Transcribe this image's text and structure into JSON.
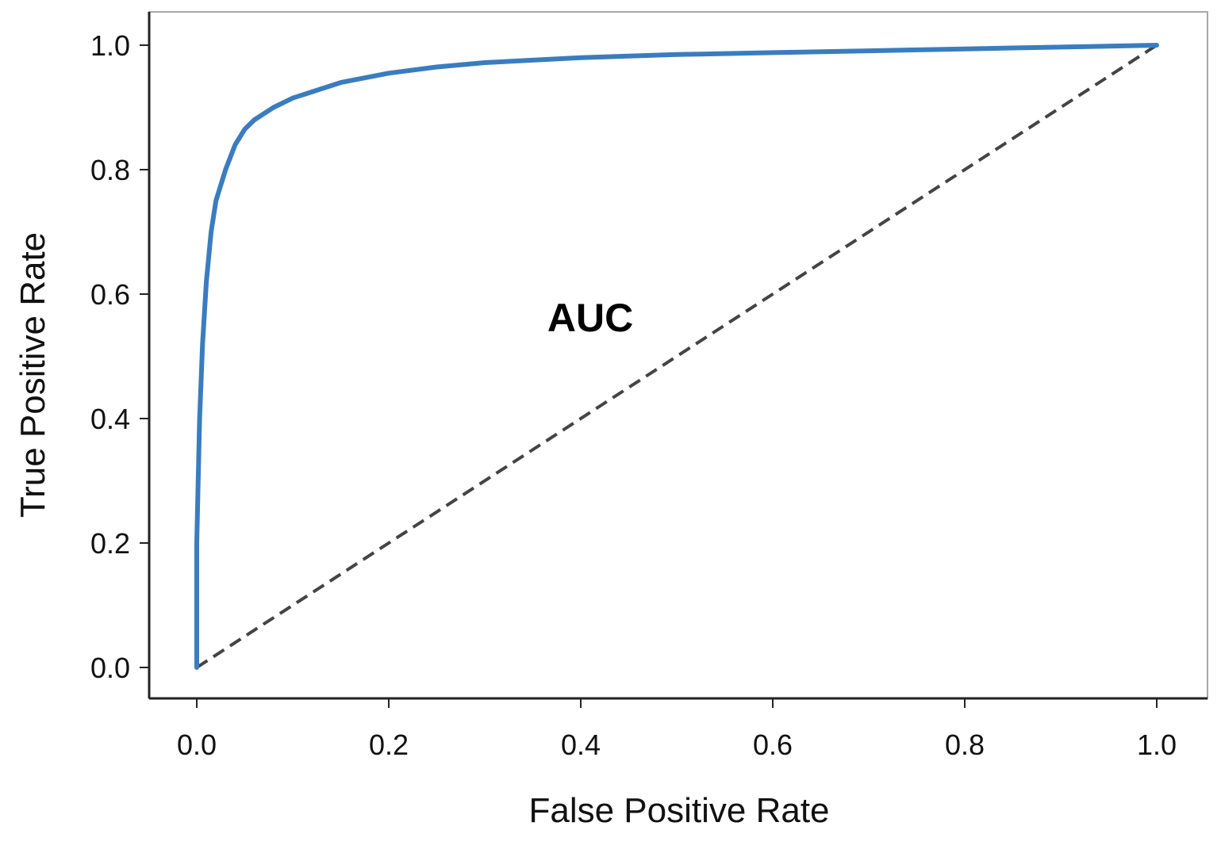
{
  "chart_data": {
    "type": "line",
    "title": "",
    "xlabel": "False Positive Rate",
    "ylabel": "True Positive Rate",
    "xlim": [
      0.0,
      1.0
    ],
    "ylim": [
      0.0,
      1.0
    ],
    "xticks": [
      "0.0",
      "0.2",
      "0.4",
      "0.6",
      "0.8",
      "1.0"
    ],
    "yticks": [
      "0.0",
      "0.2",
      "0.4",
      "0.6",
      "0.8",
      "1.0"
    ],
    "grid": false,
    "legend": "none",
    "annotations": [
      {
        "text": "AUC",
        "x": 0.41,
        "y": 0.54
      }
    ],
    "series": [
      {
        "style": "solid",
        "color": "#3a7dbf",
        "x": [
          0.0,
          0.0,
          0.003,
          0.006,
          0.01,
          0.015,
          0.02,
          0.03,
          0.04,
          0.05,
          0.06,
          0.08,
          0.1,
          0.12,
          0.15,
          0.2,
          0.25,
          0.3,
          0.4,
          0.5,
          0.6,
          0.7,
          0.8,
          0.9,
          1.0
        ],
        "y": [
          0.0,
          0.2,
          0.4,
          0.52,
          0.62,
          0.7,
          0.75,
          0.8,
          0.84,
          0.865,
          0.88,
          0.9,
          0.915,
          0.925,
          0.94,
          0.955,
          0.965,
          0.972,
          0.98,
          0.985,
          0.988,
          0.991,
          0.994,
          0.997,
          1.0
        ]
      },
      {
        "style": "dashed",
        "color": "#444444",
        "x": [
          0.0,
          1.0
        ],
        "y": [
          0.0,
          1.0
        ]
      }
    ]
  }
}
